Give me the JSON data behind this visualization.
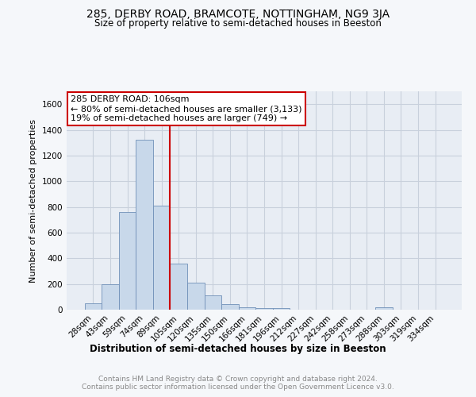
{
  "title": "285, DERBY ROAD, BRAMCOTE, NOTTINGHAM, NG9 3JA",
  "subtitle": "Size of property relative to semi-detached houses in Beeston",
  "xlabel": "Distribution of semi-detached houses by size in Beeston",
  "ylabel": "Number of semi-detached properties",
  "categories": [
    "28sqm",
    "43sqm",
    "59sqm",
    "74sqm",
    "89sqm",
    "105sqm",
    "120sqm",
    "135sqm",
    "150sqm",
    "166sqm",
    "181sqm",
    "196sqm",
    "212sqm",
    "227sqm",
    "242sqm",
    "258sqm",
    "273sqm",
    "288sqm",
    "303sqm",
    "319sqm",
    "334sqm"
  ],
  "values": [
    50,
    200,
    760,
    1320,
    810,
    360,
    210,
    110,
    45,
    20,
    10,
    10,
    0,
    0,
    0,
    0,
    0,
    20,
    0,
    0,
    0
  ],
  "bar_color": "#c8d8ea",
  "bar_edge_color": "#7090b8",
  "property_line_idx": 5,
  "annotation_line1": "285 DERBY ROAD: 106sqm",
  "annotation_line2": "← 80% of semi-detached houses are smaller (3,133)",
  "annotation_line3": "19% of semi-detached houses are larger (749) →",
  "annotation_box_color": "#ffffff",
  "annotation_box_edge_color": "#cc0000",
  "property_line_color": "#cc0000",
  "ylim": [
    0,
    1700
  ],
  "yticks": [
    0,
    200,
    400,
    600,
    800,
    1000,
    1200,
    1400,
    1600
  ],
  "footer_line1": "Contains HM Land Registry data © Crown copyright and database right 2024.",
  "footer_line2": "Contains public sector information licensed under the Open Government Licence v3.0.",
  "background_color": "#f5f7fa",
  "plot_bg_color": "#e8edf4",
  "grid_color": "#c8d0dc"
}
